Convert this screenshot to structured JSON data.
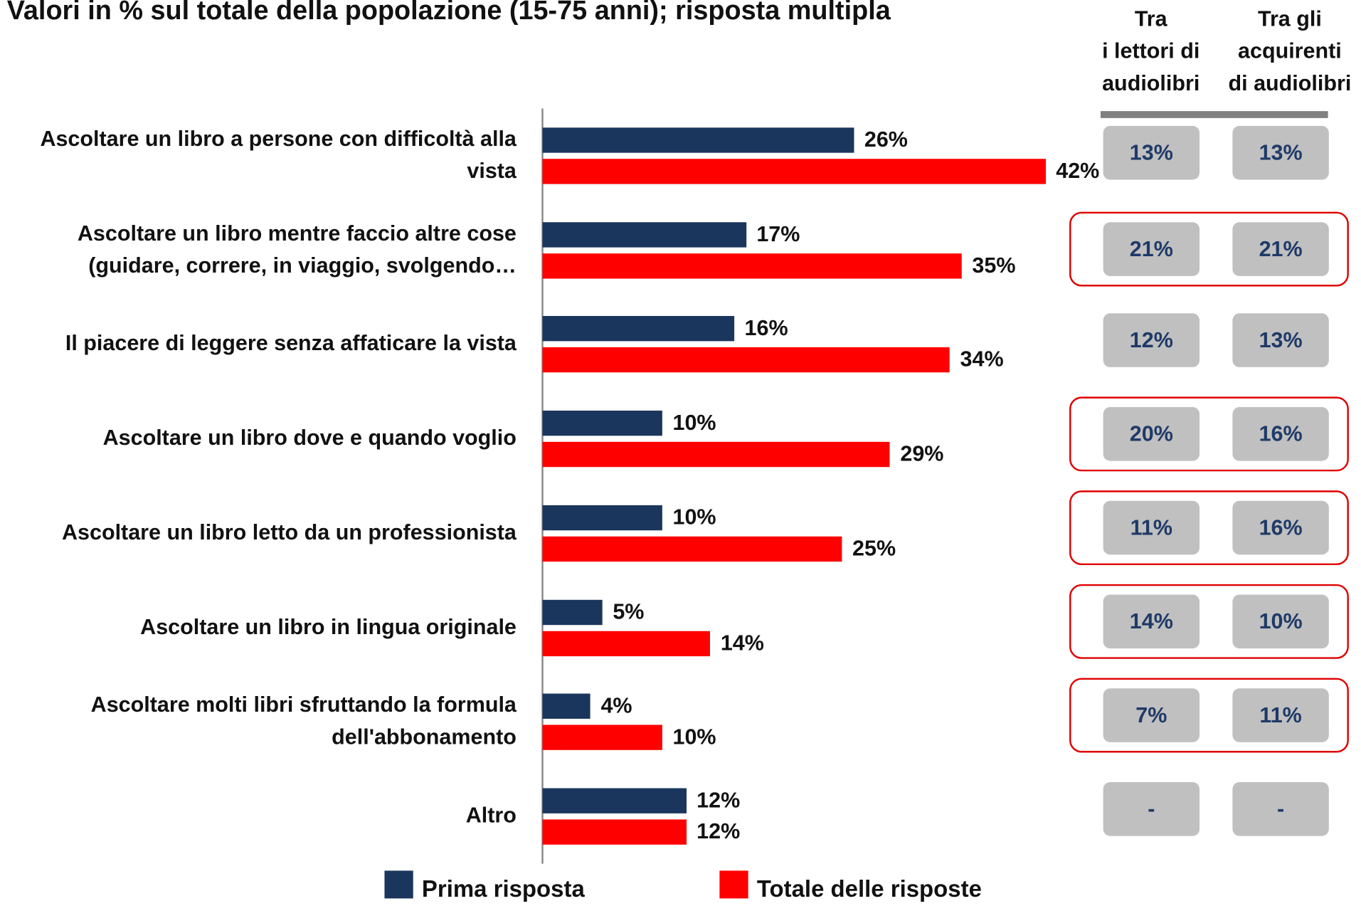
{
  "chart_data": {
    "type": "bar",
    "orientation": "horizontal",
    "title": "Valori in % sul totale della popolazione (15-75 anni); risposta multipla",
    "categories": [
      "Ascoltare un libro a persone con difficoltà alla\nvista",
      "Ascoltare un libro mentre faccio altre cose\n(guidare, correre, in viaggio, svolgendo…",
      "Il piacere di leggere senza affaticare la vista",
      "Ascoltare un libro dove e quando voglio",
      "Ascoltare un libro letto da un professionista",
      "Ascoltare un libro in lingua originale",
      "Ascoltare molti libri sfruttando la formula\ndell'abbonamento",
      "Altro"
    ],
    "series": [
      {
        "name": "Prima risposta",
        "color": "#1b365d",
        "values": [
          26,
          17,
          16,
          10,
          10,
          5,
          4,
          12
        ],
        "value_labels": [
          "26%",
          "17%",
          "16%",
          "10%",
          "10%",
          "5%",
          "4%",
          "12%"
        ]
      },
      {
        "name": "Totale delle risposte",
        "color": "#ff0000",
        "values": [
          42,
          35,
          34,
          29,
          25,
          14,
          10,
          12
        ],
        "value_labels": [
          "42%",
          "35%",
          "34%",
          "29%",
          "25%",
          "14%",
          "10%",
          "12%"
        ]
      }
    ],
    "legend": "bottom"
  },
  "table": {
    "headers": [
      "Tra\ni lettori di\naudiolibri",
      "Tra gli\nacquirenti\ndi audiolibri"
    ],
    "rows": [
      [
        "13%",
        "13%"
      ],
      [
        "21%",
        "21%"
      ],
      [
        "12%",
        "13%"
      ],
      [
        "20%",
        "16%"
      ],
      [
        "11%",
        "16%"
      ],
      [
        "14%",
        "10%"
      ],
      [
        "7%",
        "11%"
      ],
      [
        "-",
        "-"
      ]
    ],
    "highlighted_rows": [
      1,
      3,
      4,
      5,
      6
    ]
  }
}
